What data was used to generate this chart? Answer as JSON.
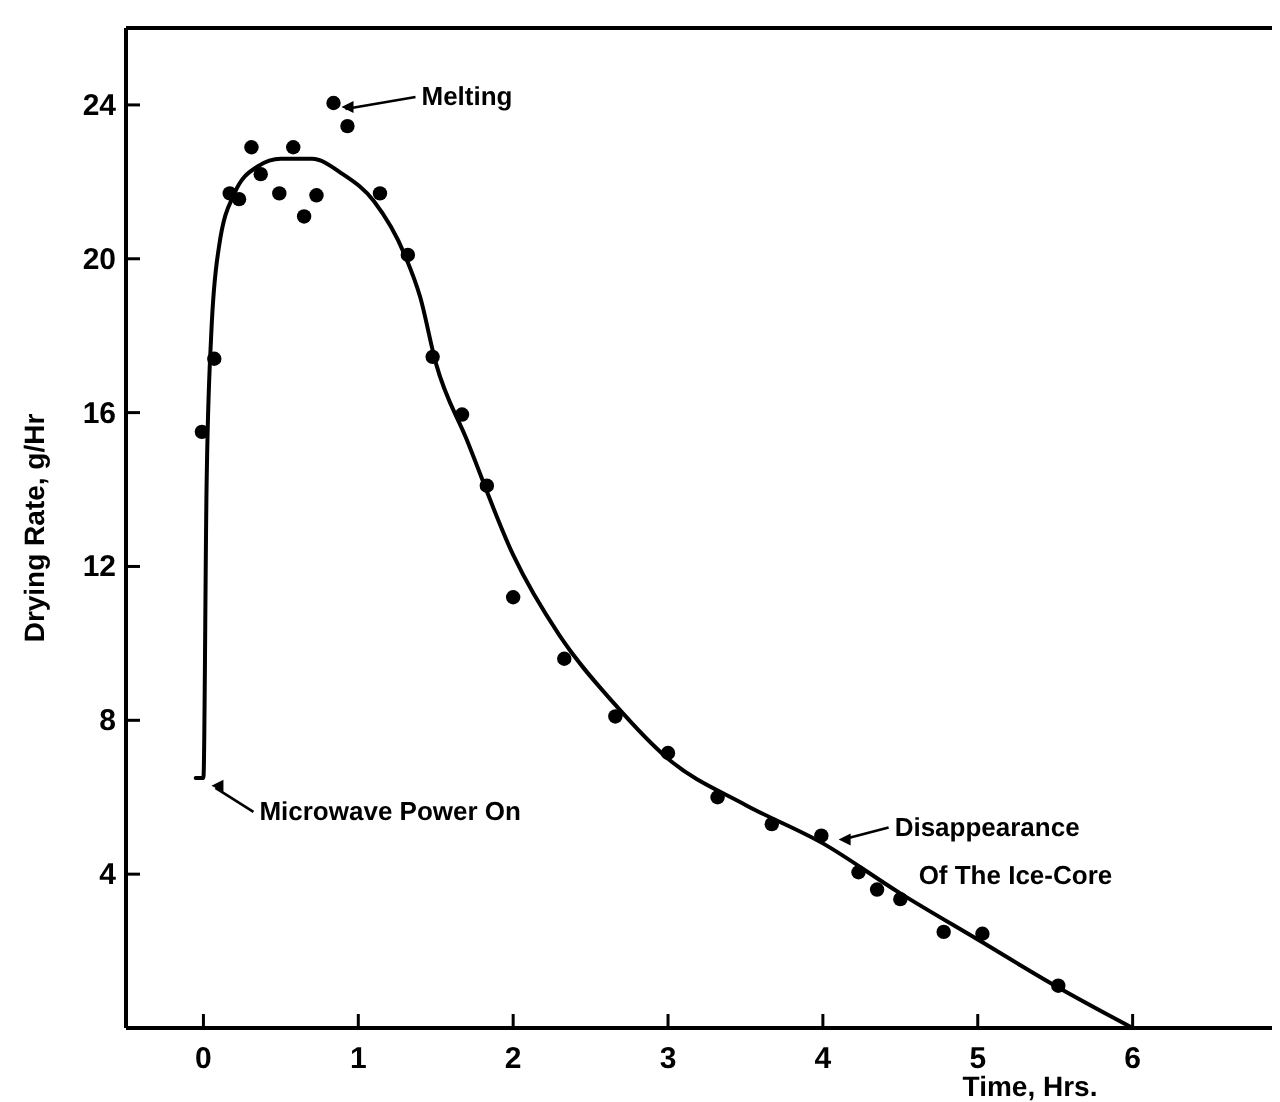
{
  "chart_data": {
    "type": "scatter",
    "xlabel": "Time, Hrs.",
    "ylabel": "Drying  Rate, g/Hr",
    "xlim": [
      -0.5,
      6.9
    ],
    "ylim": [
      0,
      26
    ],
    "xticks": [
      0,
      1,
      2,
      3,
      4,
      5,
      6
    ],
    "yticks": [
      4,
      8,
      12,
      16,
      20,
      24
    ],
    "grid": false,
    "series": [
      {
        "color": "#000000",
        "marker": "circle",
        "x": [
          -0.01,
          0.07,
          0.17,
          0.23,
          0.31,
          0.37,
          0.49,
          0.58,
          0.65,
          0.73,
          0.84,
          0.93,
          1.14,
          1.32,
          1.48,
          1.67,
          1.83,
          2.0,
          2.33,
          2.66,
          3.0,
          3.32,
          3.67,
          3.99,
          4.23,
          4.35,
          4.5,
          4.78,
          5.03,
          5.52
        ],
        "values": [
          15.5,
          17.4,
          21.7,
          21.55,
          22.9,
          22.2,
          21.7,
          22.9,
          21.1,
          21.65,
          24.05,
          23.45,
          21.7,
          20.1,
          17.45,
          15.95,
          14.1,
          11.2,
          9.6,
          8.1,
          7.15,
          6.0,
          5.3,
          5.0,
          4.05,
          3.6,
          3.35,
          2.5,
          2.45,
          1.1
        ]
      },
      {
        "type": "line",
        "color": "#000000",
        "marker": "none",
        "line_style": "solid",
        "x": [
          -0.05,
          0,
          0.02,
          0.05,
          0.1,
          0.2,
          0.35,
          0.5,
          0.7,
          0.9,
          1.1,
          1.3,
          1.4,
          1.5,
          1.7,
          2.0,
          2.3,
          2.66,
          3.0,
          3.5,
          4.0,
          4.5,
          5.0,
          5.5,
          6.0
        ],
        "values": [
          6.5,
          6.5,
          14,
          18,
          20.3,
          21.7,
          22.4,
          22.6,
          22.6,
          22.2,
          21.5,
          20.1,
          19,
          17.3,
          15.3,
          12.3,
          10.2,
          8.4,
          7.0,
          5.8,
          4.8,
          3.5,
          2.3,
          1.1,
          0
        ]
      }
    ],
    "annotations": [
      {
        "text": "Melting",
        "x": 0.84,
        "y": 24.05
      },
      {
        "text": "Microwave Power On",
        "x": 0.0,
        "y": 6.4
      },
      {
        "text": "Disappearance\nOf The Ice-Core",
        "x": 4.05,
        "y": 4.9
      }
    ]
  }
}
